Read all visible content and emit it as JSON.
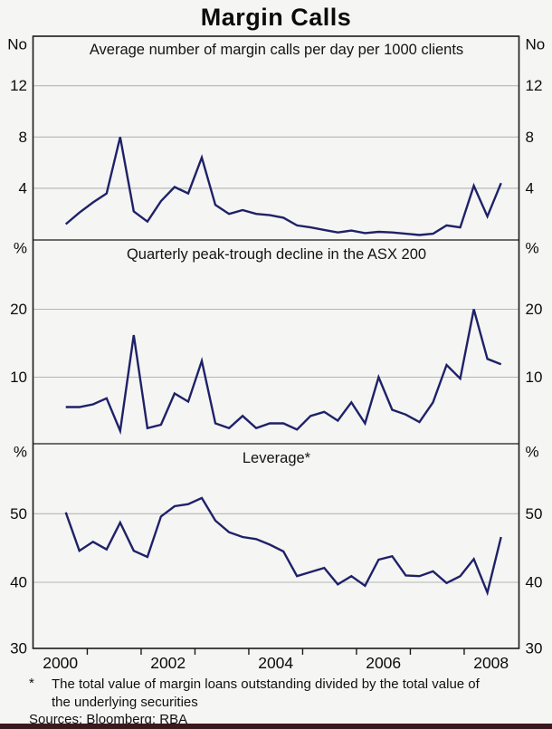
{
  "title": "Margin Calls",
  "footnote": {
    "marker": "*",
    "text": "The total value of margin loans outstanding divided by the total value of\nthe underlying securities",
    "sources": "Sources: Bloomberg; RBA"
  },
  "colors": {
    "line": "#1f2168",
    "grid": "#b5b5b5",
    "axis": "#1a1a1a",
    "background": "#f5f5f3",
    "bottom_bar": "#3a191d"
  },
  "x_axis": {
    "year_labels": [
      "2000",
      "2002",
      "2004",
      "2006",
      "2008"
    ],
    "label_years": [
      2000,
      2002,
      2004,
      2006,
      2008
    ],
    "minor_tick_years": [
      2000.5,
      2001.5,
      2002.5,
      2003.5,
      2004.5,
      2005.5,
      2006.5,
      2007.5
    ],
    "frequency": "quarterly",
    "first_point": "2000-Q1",
    "last_point": "2008-Q1"
  },
  "chart_data": [
    {
      "type": "line",
      "title": "Average number of margin calls per day per 1000 clients",
      "unit": "No",
      "yticks": [
        12,
        8,
        4
      ],
      "gridlines": [
        12,
        8,
        4
      ],
      "ylim": [
        0,
        15.9
      ],
      "x_start": 2000.0,
      "x_step_years": 0.25,
      "values": [
        1.2,
        2.1,
        2.9,
        3.6,
        8.0,
        2.2,
        1.4,
        3.0,
        4.1,
        3.6,
        6.4,
        2.7,
        2.0,
        2.3,
        2.0,
        1.9,
        1.7,
        1.1,
        0.95,
        0.75,
        0.55,
        0.7,
        0.5,
        0.6,
        0.55,
        0.45,
        0.35,
        0.45,
        1.1,
        0.95,
        4.2,
        1.8,
        4.4
      ]
    },
    {
      "type": "line",
      "title": "Quarterly peak-trough decline in the ASX 200",
      "unit": "%",
      "yticks": [
        20,
        10
      ],
      "gridlines": [
        20,
        10
      ],
      "ylim": [
        0,
        30
      ],
      "x_start": 2000.0,
      "x_step_years": 0.25,
      "values": [
        5.6,
        5.6,
        6.0,
        6.9,
        2.1,
        16.2,
        2.5,
        3.0,
        7.6,
        6.4,
        12.4,
        3.2,
        2.5,
        4.3,
        2.5,
        3.2,
        3.2,
        2.3,
        4.3,
        4.9,
        3.6,
        6.3,
        3.2,
        10.0,
        5.2,
        4.5,
        3.4,
        6.3,
        11.8,
        9.8,
        20.0,
        12.7,
        11.9
      ]
    },
    {
      "type": "line",
      "title": "Leverage*",
      "unit": "%",
      "yticks": [
        50,
        40,
        30
      ],
      "gridlines": [
        50,
        40
      ],
      "ylim": [
        30,
        60
      ],
      "x_start": 2000.0,
      "x_step_years": 0.25,
      "values": [
        50.2,
        44.6,
        45.9,
        44.8,
        48.7,
        44.6,
        43.7,
        49.6,
        51.1,
        51.4,
        52.3,
        49.0,
        47.3,
        46.6,
        46.3,
        45.5,
        44.5,
        40.9,
        41.5,
        42.1,
        39.7,
        40.9,
        39.5,
        43.3,
        43.8,
        41.0,
        40.9,
        41.6,
        39.9,
        40.9,
        43.4,
        38.5,
        46.6
      ]
    }
  ]
}
